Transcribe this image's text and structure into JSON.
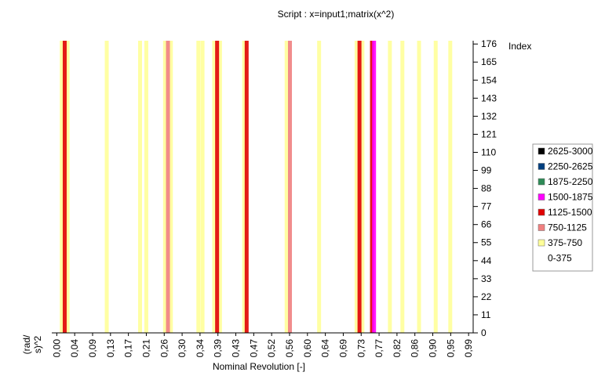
{
  "chart_data": {
    "type": "heatmap",
    "title": "Script : x=input1;matrix(x^2)",
    "x_label": "Nominal Revolution [-]",
    "y_label": "Index",
    "z_label_lines": [
      "(rad/",
      "s)^2"
    ],
    "x": [
      0.012,
      0.019,
      0.026,
      0.12,
      0.2,
      0.215,
      0.26,
      0.267,
      0.274,
      0.34,
      0.35,
      0.378,
      0.385,
      0.392,
      0.45,
      0.456,
      0.552,
      0.56,
      0.63,
      0.72,
      0.727,
      0.734,
      0.757,
      0.762,
      0.8,
      0.83,
      0.87,
      0.91,
      0.945
    ],
    "values": [
      500,
      1300,
      500,
      450,
      450,
      500,
      500,
      900,
      500,
      500,
      500,
      500,
      1300,
      500,
      500,
      1200,
      500,
      900,
      450,
      500,
      1300,
      600,
      1300,
      1600,
      450,
      450,
      420,
      420,
      420
    ],
    "xlim": [
      -0.012,
      1.0
    ],
    "xticks": [
      {
        "value": 0,
        "label": "0,00"
      },
      {
        "value": 0.043,
        "label": "0,04"
      },
      {
        "value": 0.086,
        "label": "0,09"
      },
      {
        "value": 0.129,
        "label": "0,13"
      },
      {
        "value": 0.172,
        "label": "0,17"
      },
      {
        "value": 0.215,
        "label": "0,21"
      },
      {
        "value": 0.258,
        "label": "0,26"
      },
      {
        "value": 0.301,
        "label": "0,30"
      },
      {
        "value": 0.344,
        "label": "0,34"
      },
      {
        "value": 0.387,
        "label": "0,39"
      },
      {
        "value": 0.43,
        "label": "0,43"
      },
      {
        "value": 0.473,
        "label": "0,47"
      },
      {
        "value": 0.516,
        "label": "0,52"
      },
      {
        "value": 0.559,
        "label": "0,56"
      },
      {
        "value": 0.602,
        "label": "0,60"
      },
      {
        "value": 0.645,
        "label": "0,64"
      },
      {
        "value": 0.688,
        "label": "0,69"
      },
      {
        "value": 0.731,
        "label": "0,73"
      },
      {
        "value": 0.774,
        "label": "0,77"
      },
      {
        "value": 0.817,
        "label": "0,82"
      },
      {
        "value": 0.86,
        "label": "0,86"
      },
      {
        "value": 0.903,
        "label": "0,90"
      },
      {
        "value": 0.946,
        "label": "0,95"
      },
      {
        "value": 0.989,
        "label": "0,99"
      }
    ],
    "ylim": [
      0,
      178
    ],
    "yticks": [
      0,
      11,
      22,
      33,
      44,
      55,
      66,
      77,
      88,
      99,
      110,
      121,
      132,
      143,
      154,
      165,
      176
    ],
    "colorbar": {
      "levels": [
        3000,
        2625,
        2250,
        1875,
        1500,
        1125,
        750,
        375,
        0
      ],
      "labels": [
        "2625-3000",
        "2250-2625",
        "1875-2250",
        "1500-1875",
        "1125-1500",
        "750-1125",
        "375-750",
        "0-375"
      ],
      "colors": [
        "#000000",
        "#003f7f",
        "#2e8b57",
        "#ff00ff",
        "#e00000",
        "#f08080",
        "#ffff99",
        "#ffffff"
      ]
    }
  }
}
